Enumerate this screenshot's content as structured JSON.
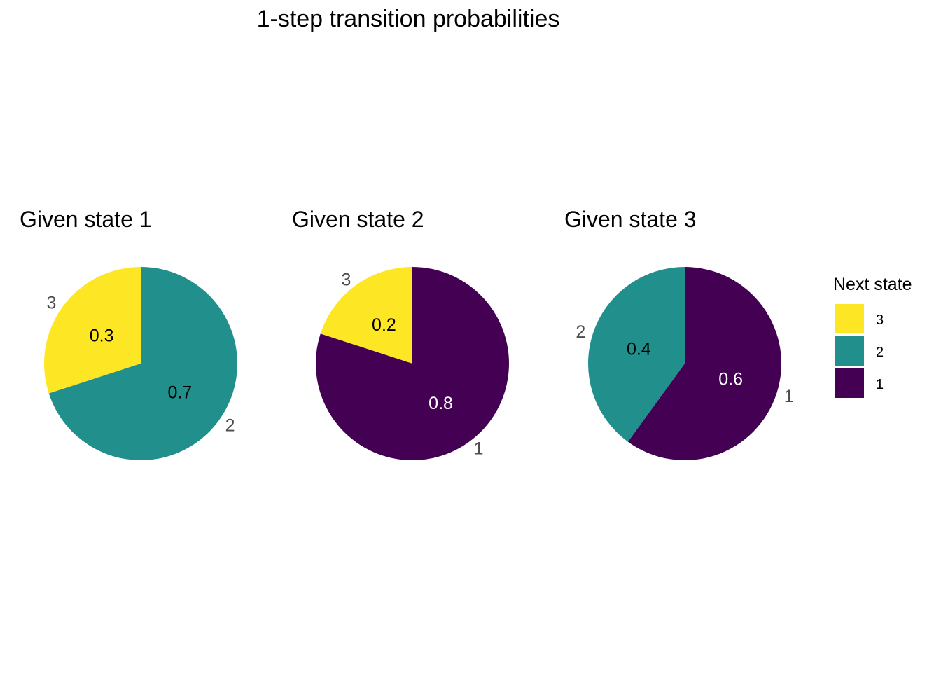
{
  "title": "1-step transition probabilities",
  "legend": {
    "title": "Next state",
    "placement": "right",
    "items": [
      {
        "label": "3",
        "color": "#FDE725"
      },
      {
        "label": "2",
        "color": "#21908C"
      },
      {
        "label": "1",
        "color": "#440154"
      }
    ]
  },
  "chart_data": [
    {
      "type": "pie",
      "title": "Given state 1",
      "slices": [
        {
          "label": "3",
          "value": 0.3,
          "value_label": "0.3",
          "color": "#FDE725"
        },
        {
          "label": "2",
          "value": 0.7,
          "value_label": "0.7",
          "color": "#21908C"
        }
      ]
    },
    {
      "type": "pie",
      "title": "Given state 2",
      "slices": [
        {
          "label": "3",
          "value": 0.2,
          "value_label": "0.2",
          "color": "#FDE725"
        },
        {
          "label": "1",
          "value": 0.8,
          "value_label": "0.8",
          "color": "#440154"
        }
      ]
    },
    {
      "type": "pie",
      "title": "Given state 3",
      "slices": [
        {
          "label": "2",
          "value": 0.4,
          "value_label": "0.4",
          "color": "#21908C"
        },
        {
          "label": "1",
          "value": 0.6,
          "value_label": "0.6",
          "color": "#440154"
        }
      ]
    }
  ]
}
